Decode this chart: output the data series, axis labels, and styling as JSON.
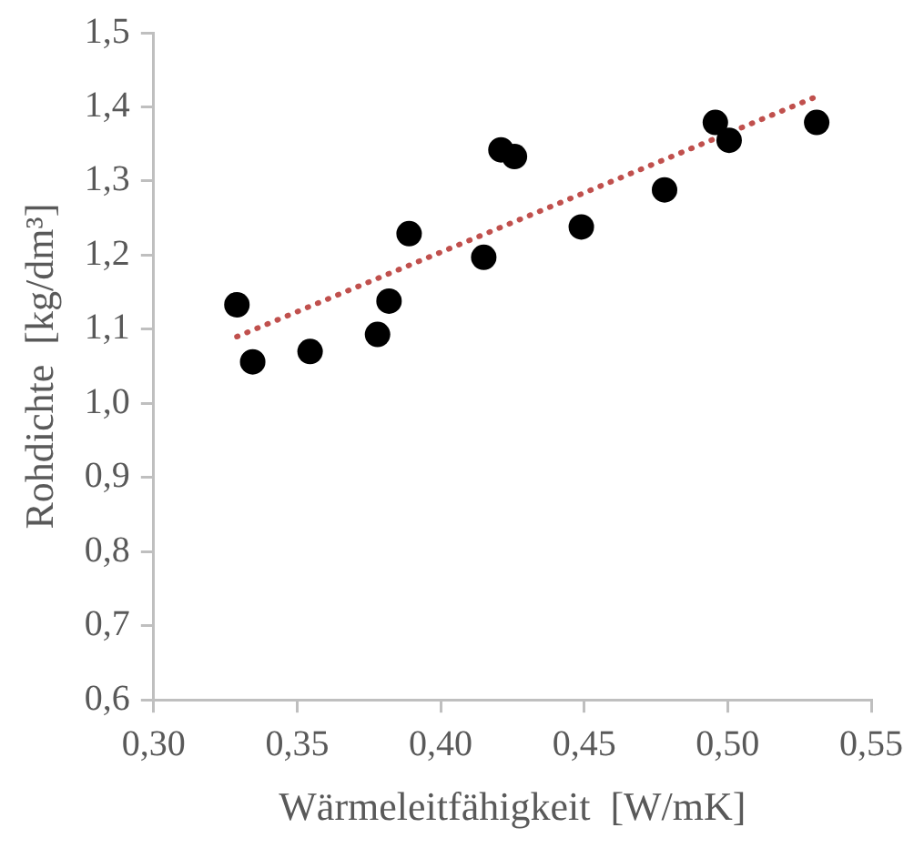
{
  "chart_data": {
    "type": "scatter",
    "xlabel": "Wärmeleitfähigkeit  [W/mK]",
    "ylabel": "Rohdichte  [kg/dm³]",
    "xlim": [
      0.3,
      0.55
    ],
    "xticks": [
      {
        "value": 0.3,
        "label": "0,30"
      },
      {
        "value": 0.35,
        "label": "0,35"
      },
      {
        "value": 0.4,
        "label": "0,40"
      },
      {
        "value": 0.45,
        "label": "0,45"
      },
      {
        "value": 0.5,
        "label": "0,50"
      },
      {
        "value": 0.55,
        "label": "0,55"
      }
    ],
    "ylim": [
      0.6,
      1.5
    ],
    "yticks": [
      {
        "value": 0.6,
        "label": "0,6"
      },
      {
        "value": 0.7,
        "label": "0,7"
      },
      {
        "value": 0.8,
        "label": "0,8"
      },
      {
        "value": 0.9,
        "label": "0,9"
      },
      {
        "value": 1.0,
        "label": "1,0"
      },
      {
        "value": 1.1,
        "label": "1,1"
      },
      {
        "value": 1.2,
        "label": "1,2"
      },
      {
        "value": 1.3,
        "label": "1,3"
      },
      {
        "value": 1.4,
        "label": "1,4"
      },
      {
        "value": 1.5,
        "label": "1,5"
      }
    ],
    "grid": false,
    "legend": false,
    "marker": "circle",
    "series": [
      {
        "color": "#000000",
        "x": [
          0.329,
          0.3345,
          0.3545,
          0.378,
          0.382,
          0.389,
          0.415,
          0.421,
          0.4257,
          0.449,
          0.478,
          0.4957,
          0.5005,
          0.531
        ],
        "values": [
          1.133,
          1.056,
          1.07,
          1.093,
          1.138,
          1.229,
          1.197,
          1.342,
          1.333,
          1.238,
          1.288,
          1.379,
          1.355,
          1.379
        ]
      },
      {
        "type": "line",
        "color": "#c0504d",
        "line_style": "dotted",
        "marker": "none",
        "x": [
          0.329,
          0.531
        ],
        "values": [
          1.09,
          1.414
        ]
      }
    ]
  }
}
